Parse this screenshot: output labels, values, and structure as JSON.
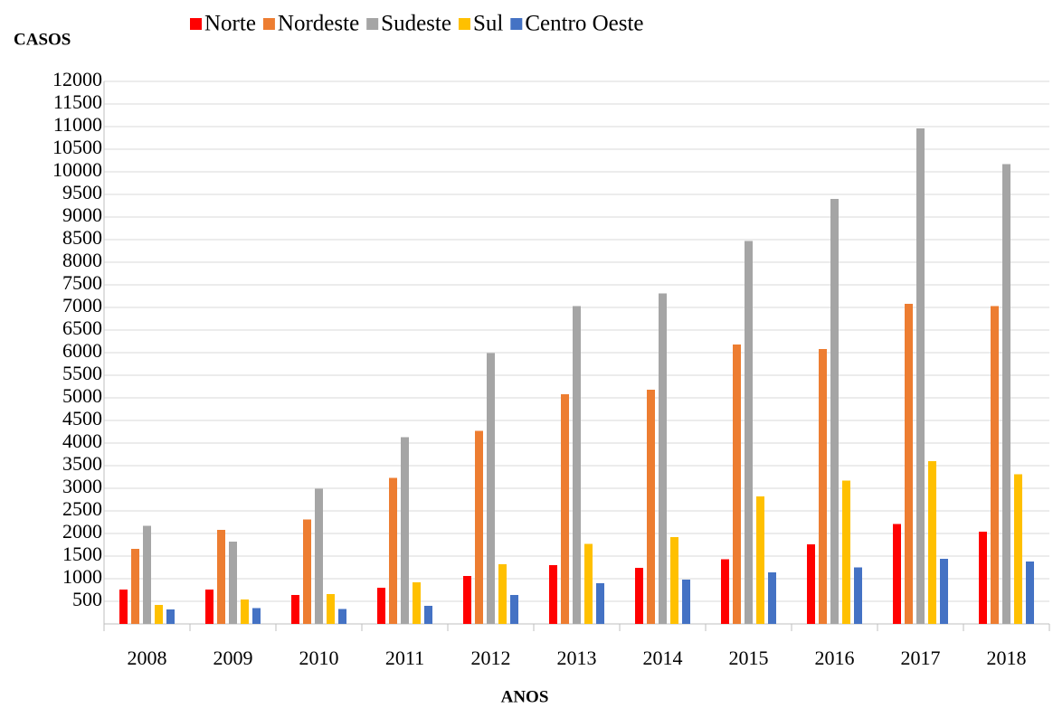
{
  "chart_data": {
    "type": "bar",
    "y_label": "CASOS",
    "x_label": "ANOS",
    "categories": [
      "2008",
      "2009",
      "2010",
      "2011",
      "2012",
      "2013",
      "2014",
      "2015",
      "2016",
      "2017",
      "2018"
    ],
    "series": [
      {
        "name": "Norte",
        "color": "#ff0000",
        "values": [
          760,
          760,
          640,
          800,
          1060,
          1300,
          1240,
          1430,
          1760,
          2210,
          2040
        ]
      },
      {
        "name": "Nordeste",
        "color": "#ed7d31",
        "values": [
          1660,
          2080,
          2310,
          3230,
          4270,
          5080,
          5180,
          6180,
          6080,
          7080,
          7030
        ]
      },
      {
        "name": "Sudeste",
        "color": "#a5a5a5",
        "values": [
          2170,
          1820,
          2990,
          4130,
          5990,
          7030,
          7310,
          8470,
          9400,
          10960,
          10170
        ]
      },
      {
        "name": "Sul",
        "color": "#ffc000",
        "values": [
          420,
          540,
          660,
          920,
          1320,
          1770,
          1920,
          2820,
          3170,
          3600,
          3310
        ]
      },
      {
        "name": "Centro Oeste",
        "color": "#4472c4",
        "values": [
          320,
          350,
          330,
          400,
          640,
          900,
          980,
          1140,
          1250,
          1440,
          1380
        ]
      }
    ],
    "ylim": [
      0,
      12000
    ],
    "yticks": [
      500,
      1000,
      1500,
      2000,
      2500,
      3000,
      3500,
      4000,
      4500,
      5000,
      5500,
      6000,
      6500,
      7000,
      7500,
      8000,
      8500,
      9000,
      9500,
      10000,
      10500,
      11000,
      11500,
      12000
    ],
    "grid": true,
    "legend": "top"
  }
}
